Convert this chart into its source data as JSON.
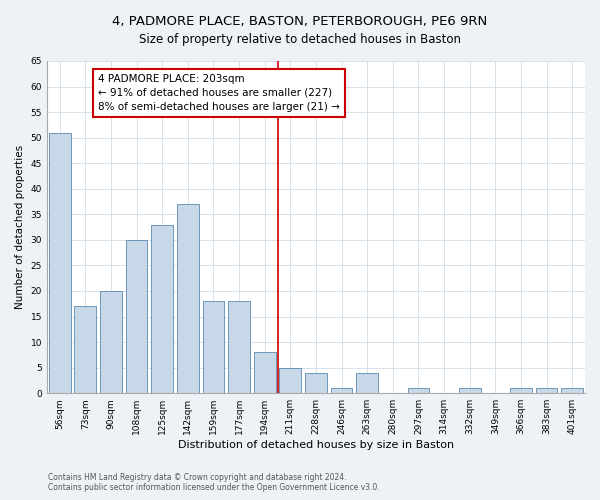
{
  "title": "4, PADMORE PLACE, BASTON, PETERBOROUGH, PE6 9RN",
  "subtitle": "Size of property relative to detached houses in Baston",
  "xlabel": "Distribution of detached houses by size in Baston",
  "ylabel": "Number of detached properties",
  "categories": [
    "56sqm",
    "73sqm",
    "90sqm",
    "108sqm",
    "125sqm",
    "142sqm",
    "159sqm",
    "177sqm",
    "194sqm",
    "211sqm",
    "228sqm",
    "246sqm",
    "263sqm",
    "280sqm",
    "297sqm",
    "314sqm",
    "332sqm",
    "349sqm",
    "366sqm",
    "383sqm",
    "401sqm"
  ],
  "values": [
    51,
    17,
    20,
    30,
    33,
    37,
    18,
    18,
    8,
    5,
    4,
    1,
    4,
    0,
    1,
    0,
    1,
    0,
    1,
    1,
    1
  ],
  "bar_color": "#c8d8e8",
  "bar_edge_color": "#5a8ab0",
  "vline_color": "#cc0000",
  "annotation_line1": "4 PADMORE PLACE: 203sqm",
  "annotation_line2": "← 91% of detached houses are smaller (227)",
  "annotation_line3": "8% of semi-detached houses are larger (21) →",
  "annotation_box_color": "#cc0000",
  "ylim": [
    0,
    65
  ],
  "yticks": [
    0,
    5,
    10,
    15,
    20,
    25,
    30,
    35,
    40,
    45,
    50,
    55,
    60,
    65
  ],
  "footnote1": "Contains HM Land Registry data © Crown copyright and database right 2024.",
  "footnote2": "Contains public sector information licensed under the Open Government Licence v3.0.",
  "background_color": "#eef2f7",
  "plot_bg_color": "#ffffff",
  "title_fontsize": 9.5,
  "subtitle_fontsize": 8.5,
  "xlabel_fontsize": 8,
  "ylabel_fontsize": 7.5,
  "tick_fontsize": 6.5,
  "annotation_fontsize": 7.5,
  "footnote_fontsize": 5.5,
  "vline_x": 8.5
}
